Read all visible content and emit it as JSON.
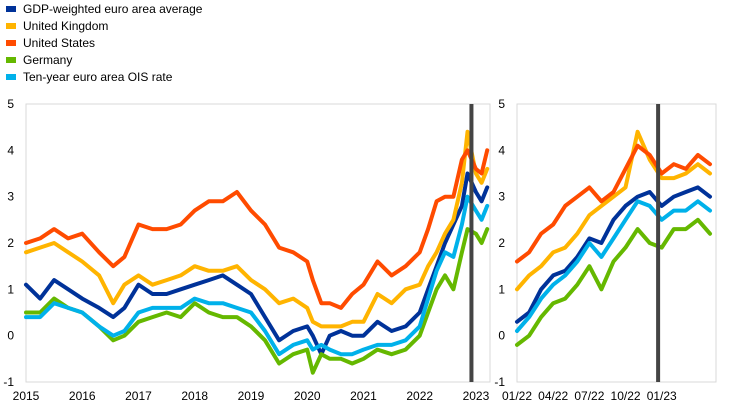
{
  "colors": {
    "gdp": "#003299",
    "uk": "#ffb400",
    "us": "#ff4b00",
    "germany": "#65b800",
    "ois": "#00b1ea",
    "marker": "#444444"
  },
  "legend": [
    {
      "key": "gdp",
      "label": "GDP-weighted euro area average"
    },
    {
      "key": "uk",
      "label": "United Kingdom"
    },
    {
      "key": "us",
      "label": "United States"
    },
    {
      "key": "germany",
      "label": "Germany"
    },
    {
      "key": "ois",
      "label": "Ten-year euro area OIS rate"
    }
  ],
  "chart_data": [
    {
      "type": "line",
      "panel": "left",
      "x_ticks": [
        "2015",
        "2016",
        "2017",
        "2018",
        "2019",
        "2020",
        "2021",
        "2022",
        "2023"
      ],
      "ylim": [
        -1,
        5
      ],
      "y_ticks": [
        "5",
        "4",
        "3",
        "2",
        "1",
        "0",
        "-1"
      ],
      "grid": false,
      "vertical_marker": 2022.92,
      "series": [
        {
          "key": "gdp",
          "name": "GDP-weighted euro area average",
          "x": [
            2015,
            2015.25,
            2015.5,
            2015.75,
            2016,
            2016.3,
            2016.55,
            2016.75,
            2017,
            2017.25,
            2017.5,
            2017.75,
            2018,
            2018.25,
            2018.5,
            2018.75,
            2019,
            2019.25,
            2019.5,
            2019.75,
            2020,
            2020.1,
            2020.25,
            2020.4,
            2020.6,
            2020.8,
            2021,
            2021.25,
            2021.5,
            2021.75,
            2022,
            2022.15,
            2022.3,
            2022.45,
            2022.6,
            2022.75,
            2022.85,
            2023,
            2023.1,
            2023.2
          ],
          "y": [
            1.1,
            0.8,
            1.2,
            1.0,
            0.8,
            0.6,
            0.4,
            0.6,
            1.1,
            0.9,
            0.9,
            1.0,
            1.1,
            1.2,
            1.3,
            1.1,
            0.9,
            0.4,
            -0.1,
            0.1,
            0.2,
            0.0,
            -0.4,
            0.0,
            0.1,
            0.0,
            0.0,
            0.3,
            0.1,
            0.2,
            0.5,
            1.0,
            1.5,
            2.0,
            2.4,
            2.8,
            3.5,
            3.1,
            2.9,
            3.2
          ]
        },
        {
          "key": "uk",
          "name": "United Kingdom",
          "x": [
            2015,
            2015.25,
            2015.5,
            2015.75,
            2016,
            2016.3,
            2016.55,
            2016.75,
            2017,
            2017.25,
            2017.5,
            2017.75,
            2018,
            2018.25,
            2018.5,
            2018.75,
            2019,
            2019.25,
            2019.5,
            2019.75,
            2020,
            2020.1,
            2020.25,
            2020.4,
            2020.6,
            2020.8,
            2021,
            2021.25,
            2021.5,
            2021.75,
            2022,
            2022.15,
            2022.3,
            2022.45,
            2022.6,
            2022.75,
            2022.85,
            2023,
            2023.1,
            2023.2
          ],
          "y": [
            1.8,
            1.9,
            2.0,
            1.8,
            1.6,
            1.3,
            0.7,
            1.1,
            1.3,
            1.1,
            1.2,
            1.3,
            1.5,
            1.4,
            1.4,
            1.5,
            1.2,
            1.0,
            0.7,
            0.8,
            0.6,
            0.3,
            0.2,
            0.2,
            0.2,
            0.3,
            0.3,
            0.9,
            0.7,
            1.0,
            1.1,
            1.5,
            1.8,
            2.2,
            2.5,
            3.3,
            4.4,
            3.5,
            3.3,
            3.6
          ]
        },
        {
          "key": "us",
          "name": "United States",
          "x": [
            2015,
            2015.25,
            2015.5,
            2015.75,
            2016,
            2016.3,
            2016.55,
            2016.75,
            2017,
            2017.25,
            2017.5,
            2017.75,
            2018,
            2018.25,
            2018.5,
            2018.75,
            2019,
            2019.25,
            2019.5,
            2019.75,
            2020,
            2020.1,
            2020.25,
            2020.4,
            2020.6,
            2020.8,
            2021,
            2021.25,
            2021.5,
            2021.75,
            2022,
            2022.15,
            2022.3,
            2022.45,
            2022.6,
            2022.75,
            2022.85,
            2023,
            2023.1,
            2023.2
          ],
          "y": [
            2.0,
            2.1,
            2.3,
            2.1,
            2.2,
            1.8,
            1.5,
            1.7,
            2.4,
            2.3,
            2.3,
            2.4,
            2.7,
            2.9,
            2.9,
            3.1,
            2.7,
            2.4,
            1.9,
            1.8,
            1.6,
            1.2,
            0.7,
            0.7,
            0.6,
            0.9,
            1.1,
            1.6,
            1.3,
            1.5,
            1.8,
            2.3,
            2.9,
            3.0,
            3.0,
            3.8,
            4.0,
            3.6,
            3.5,
            4.0
          ]
        },
        {
          "key": "germany",
          "name": "Germany",
          "x": [
            2015,
            2015.25,
            2015.5,
            2015.75,
            2016,
            2016.3,
            2016.55,
            2016.75,
            2017,
            2017.25,
            2017.5,
            2017.75,
            2018,
            2018.25,
            2018.5,
            2018.75,
            2019,
            2019.25,
            2019.5,
            2019.75,
            2020,
            2020.1,
            2020.25,
            2020.4,
            2020.6,
            2020.8,
            2021,
            2021.25,
            2021.5,
            2021.75,
            2022,
            2022.15,
            2022.3,
            2022.45,
            2022.6,
            2022.75,
            2022.85,
            2023,
            2023.1,
            2023.2
          ],
          "y": [
            0.5,
            0.5,
            0.8,
            0.6,
            0.5,
            0.2,
            -0.1,
            0.0,
            0.3,
            0.4,
            0.5,
            0.4,
            0.7,
            0.5,
            0.4,
            0.4,
            0.2,
            -0.1,
            -0.6,
            -0.4,
            -0.3,
            -0.8,
            -0.4,
            -0.5,
            -0.5,
            -0.6,
            -0.5,
            -0.3,
            -0.4,
            -0.3,
            0.0,
            0.5,
            1.0,
            1.3,
            1.0,
            1.8,
            2.3,
            2.2,
            2.0,
            2.3
          ]
        },
        {
          "key": "ois",
          "name": "Ten-year euro area OIS rate",
          "x": [
            2015,
            2015.25,
            2015.5,
            2015.75,
            2016,
            2016.3,
            2016.55,
            2016.75,
            2017,
            2017.25,
            2017.5,
            2017.75,
            2018,
            2018.25,
            2018.5,
            2018.75,
            2019,
            2019.25,
            2019.5,
            2019.75,
            2020,
            2020.1,
            2020.25,
            2020.4,
            2020.6,
            2020.8,
            2021,
            2021.25,
            2021.5,
            2021.75,
            2022,
            2022.15,
            2022.3,
            2022.45,
            2022.6,
            2022.75,
            2022.85,
            2023,
            2023.1,
            2023.2
          ],
          "y": [
            0.4,
            0.4,
            0.7,
            0.6,
            0.5,
            0.2,
            0.0,
            0.1,
            0.5,
            0.6,
            0.6,
            0.6,
            0.8,
            0.7,
            0.7,
            0.6,
            0.5,
            0.1,
            -0.4,
            -0.2,
            -0.1,
            -0.3,
            -0.2,
            -0.3,
            -0.4,
            -0.4,
            -0.3,
            -0.2,
            -0.2,
            -0.1,
            0.2,
            0.8,
            1.4,
            1.8,
            1.7,
            2.4,
            3.0,
            2.7,
            2.5,
            2.8
          ]
        }
      ]
    },
    {
      "type": "line",
      "panel": "right",
      "x_ticks": [
        "01/22",
        "04/22",
        "07/22",
        "10/22",
        "01/23"
      ],
      "ylim": [
        -1,
        5
      ],
      "y_ticks": [
        "5",
        "4",
        "3",
        "2",
        "1",
        "0",
        "-1"
      ],
      "grid": false,
      "vertical_marker": 11.7,
      "series": [
        {
          "key": "gdp",
          "name": "GDP-weighted euro area average",
          "x": [
            0,
            1,
            2,
            3,
            4,
            5,
            6,
            7,
            8,
            9,
            10,
            11,
            12,
            13,
            14,
            15,
            16
          ],
          "y": [
            0.3,
            0.5,
            1.0,
            1.3,
            1.4,
            1.7,
            2.1,
            2.0,
            2.5,
            2.8,
            3.0,
            3.1,
            2.8,
            3.0,
            3.1,
            3.2,
            3.0
          ]
        },
        {
          "key": "uk",
          "name": "United Kingdom",
          "x": [
            0,
            1,
            2,
            3,
            4,
            5,
            6,
            7,
            8,
            9,
            10,
            11,
            12,
            13,
            14,
            15,
            16
          ],
          "y": [
            1.0,
            1.3,
            1.5,
            1.8,
            1.9,
            2.2,
            2.6,
            2.8,
            3.0,
            3.2,
            4.4,
            3.8,
            3.4,
            3.4,
            3.5,
            3.7,
            3.5
          ]
        },
        {
          "key": "us",
          "name": "United States",
          "x": [
            0,
            1,
            2,
            3,
            4,
            5,
            6,
            7,
            8,
            9,
            10,
            11,
            12,
            13,
            14,
            15,
            16
          ],
          "y": [
            1.6,
            1.8,
            2.2,
            2.4,
            2.8,
            3.0,
            3.2,
            2.9,
            3.1,
            3.6,
            4.1,
            3.9,
            3.5,
            3.7,
            3.6,
            3.9,
            3.7
          ]
        },
        {
          "key": "germany",
          "name": "Germany",
          "x": [
            0,
            1,
            2,
            3,
            4,
            5,
            6,
            7,
            8,
            9,
            10,
            11,
            12,
            13,
            14,
            15,
            16
          ],
          "y": [
            -0.2,
            0.0,
            0.4,
            0.7,
            0.8,
            1.1,
            1.5,
            1.0,
            1.6,
            1.9,
            2.3,
            2.0,
            1.9,
            2.3,
            2.3,
            2.5,
            2.2
          ]
        },
        {
          "key": "ois",
          "name": "Ten-year euro area OIS rate",
          "x": [
            0,
            1,
            2,
            3,
            4,
            5,
            6,
            7,
            8,
            9,
            10,
            11,
            12,
            13,
            14,
            15,
            16
          ],
          "y": [
            0.1,
            0.4,
            0.8,
            1.1,
            1.3,
            1.6,
            2.0,
            1.7,
            2.1,
            2.5,
            2.9,
            2.8,
            2.5,
            2.7,
            2.7,
            2.9,
            2.7
          ]
        }
      ]
    }
  ]
}
